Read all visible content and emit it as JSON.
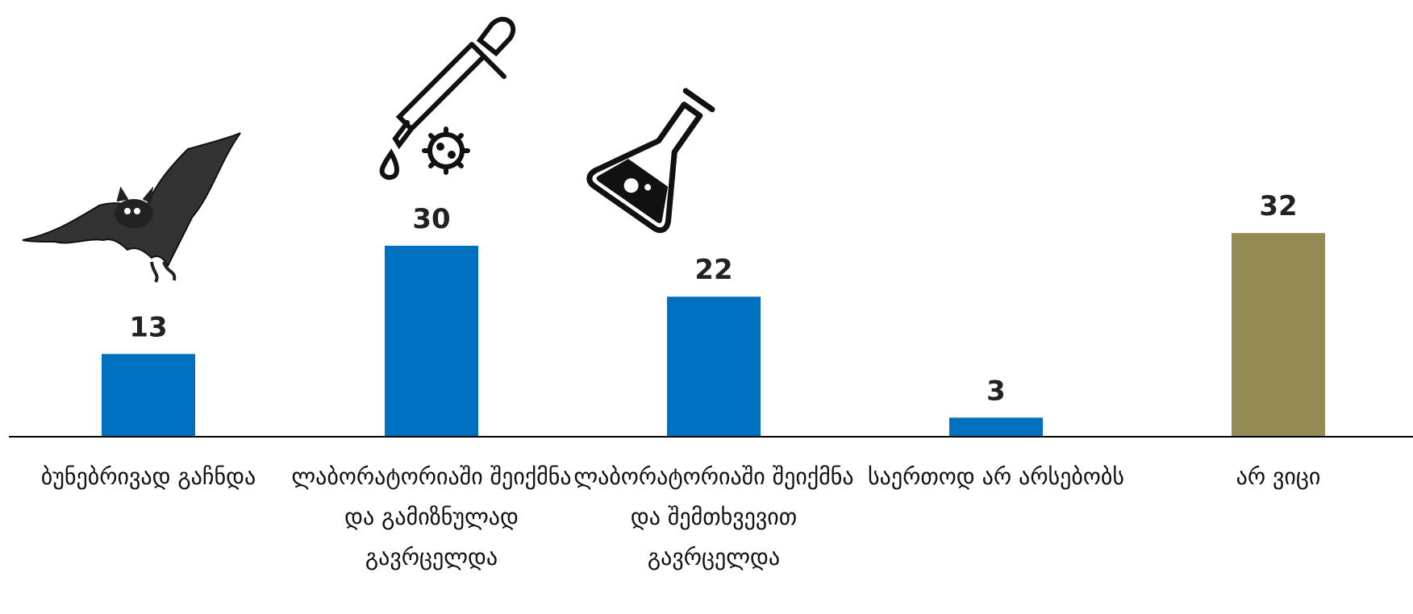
{
  "chart_data": {
    "type": "bar",
    "categories": [
      "ბუნებრივად გაჩნდა",
      "ლაბორატორიაში შეიქმნა და გამიზნულად გავრცელდა",
      "ლაბორატორიაში შეიქმნა და შემთხვევით გავრცელდა",
      "საერთოდ არ არსებობს",
      "არ ვიცი"
    ],
    "values": [
      13,
      30,
      22,
      3,
      32
    ],
    "colors": [
      "#0070c0",
      "#0070c0",
      "#0070c0",
      "#0070c0",
      "#948a54"
    ]
  }
}
